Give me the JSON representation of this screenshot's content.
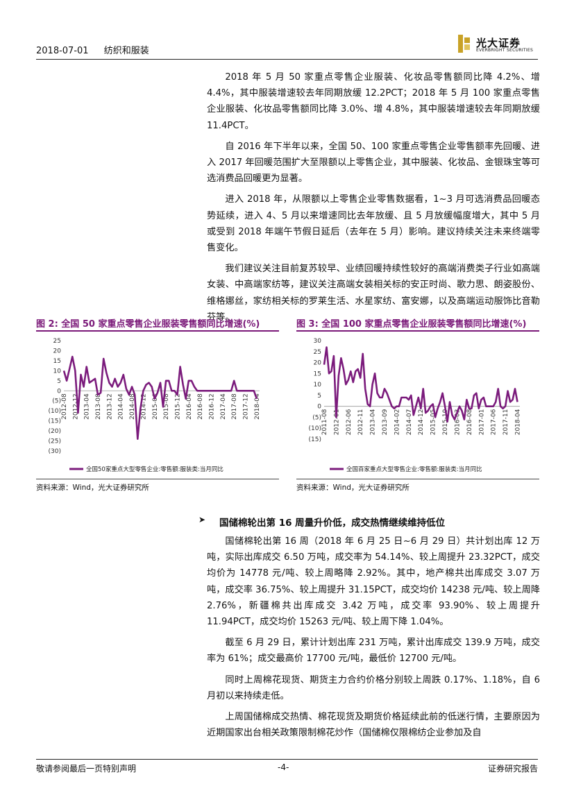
{
  "header": {
    "date": "2018-07-01",
    "sector": "纺织和服装",
    "logo_cn": "光大证券",
    "logo_en": "EVERBRIGHT SECURITIES"
  },
  "paragraphs_top": [
    "2018 年 5 月 50 家重点零售企业服装、化妆品零售额同比降 4.2%、增 4.4%，其中服装增速较去年同期放缓 12.2PCT；2018 年 5 月 100 家重点零售企业服装、化妆品零售额同比降 3.0%、增 4.8%，其中服装增速较去年同期放缓 11.4PCT。",
    "自 2016 年下半年以来，全国 50、100 家重点零售企业零售额率先回暖、进入 2017 年回暖范围扩大至限额以上零售企业，其中服装、化妆品、金银珠宝等可选消费品回暖更为显著。",
    "进入 2018 年，从限额以上零售企业零售数据看，1~3 月可选消费品回暖态势延续，进入 4、5 月以来增速同比去年放缓、且 5 月放缓幅度增大，其中 5 月或受到 2018 年端午节假日延后（去年在 5 月）影响。建议持续关注未来终端零售变化。",
    "我们建议关注目前复苏较早、业绩回暖持续性较好的高端消费类子行业如高端女装、中高端家纺等，建议关注高端女装相关标的安正时尚、歌力思、朗姿股份、维格娜丝，家纺相关标的罗莱生活、水星家纺、富安娜，以及高端运动服饰比音勒芬等。"
  ],
  "figure2": {
    "title": "图 2: 全国 50 家重点零售企业服装零售额同比增速(%)",
    "source": "资料来源：Wind，光大证券研究所"
  },
  "figure3": {
    "title": "图 3: 全国 100 家重点零售企业服装零售额同比增速(%)",
    "source": "资料来源：Wind，光大证券研究所"
  },
  "chart_data": [
    {
      "type": "line",
      "title": "图 2: 全国 50 家重点零售企业服装零售额同比增速(%)",
      "yticks": [
        "25",
        "20",
        "15",
        "10",
        "5",
        "0",
        "(5)",
        "(10)",
        "(15)",
        "(20)",
        "(25)",
        "(30)"
      ],
      "ylim": [
        -30,
        25
      ],
      "xticks": [
        "2012-08",
        "2012-12",
        "2013-04",
        "2013-08",
        "2013-12",
        "2014-04",
        "2014-08",
        "2014-12",
        "2015-04",
        "2015-08",
        "2015-12",
        "2016-04",
        "2016-08",
        "2016-12",
        "2017-04",
        "2017-08",
        "2017-12",
        "2018-04"
      ],
      "xtick_index": [
        0,
        4,
        8,
        12,
        16,
        20,
        24,
        28,
        32,
        36,
        40,
        44,
        48,
        52,
        56,
        60,
        64,
        68
      ],
      "x_range": [
        0,
        69
      ],
      "series": [
        {
          "name": "全国50家重点大型零售企业:零售额:服装类:当月同比",
          "color": "#7b1b7c",
          "values": [
            10,
            5,
            11,
            17,
            10,
            -11,
            8,
            2,
            12,
            4,
            5,
            6,
            -2,
            -1,
            16,
            9,
            4,
            2,
            6,
            2,
            4,
            8,
            1,
            -2,
            2,
            -2,
            -24,
            -9,
            0,
            3,
            4,
            2,
            -4,
            -1,
            4,
            -8,
            5,
            5,
            0,
            0,
            -2,
            12,
            3,
            -4,
            5,
            5,
            2,
            0,
            0,
            0,
            0,
            0,
            0,
            0,
            0,
            0,
            0,
            0,
            0,
            0,
            5,
            0,
            0,
            0,
            0,
            0,
            0,
            0,
            -4
          ]
        }
      ]
    },
    {
      "type": "line",
      "title": "图 3: 全国 100 家重点零售企业服装零售额同比增速(%)",
      "yticks": [
        "30",
        "25",
        "20",
        "15",
        "10",
        "5",
        "0",
        "(5)",
        "(10)",
        "(15)"
      ],
      "ylim": [
        -15,
        30
      ],
      "xticks": [
        "2011-08",
        "2012-01",
        "2012-06",
        "2012-11",
        "2013-04",
        "2013-09",
        "2014-02",
        "2014-07",
        "2014-12",
        "2015-05",
        "2015-10",
        "2016-03",
        "2016-08",
        "2017-01",
        "2017-06",
        "2017-11",
        "2018-04"
      ],
      "xtick_index": [
        0,
        5,
        10,
        15,
        20,
        25,
        30,
        35,
        40,
        45,
        50,
        55,
        60,
        65,
        70,
        75,
        80
      ],
      "x_range": [
        0,
        81
      ],
      "series": [
        {
          "name": "全国百家重点大型零售企业:零售额:服装类:当月同比",
          "color": "#7b1b7c",
          "values": [
            19,
            27,
            15,
            16,
            23,
            -5,
            14,
            22,
            17,
            10,
            12,
            16,
            11,
            16,
            17,
            13,
            24,
            8,
            1,
            0,
            10,
            15,
            6,
            4,
            4,
            8,
            6,
            3,
            0,
            -1,
            0,
            0,
            4,
            4,
            4,
            3,
            5,
            -4,
            0,
            4,
            -1,
            8,
            -3,
            -2,
            0,
            1,
            -5,
            -1,
            2,
            6,
            0,
            -7,
            2,
            -4,
            -6,
            -3,
            0,
            -2,
            -6,
            3,
            -1,
            -1,
            5,
            6,
            -1,
            3,
            4,
            0,
            0,
            0,
            0,
            2,
            8,
            0,
            -1,
            0,
            7,
            2,
            3,
            8,
            2
          ]
        }
      ]
    }
  ],
  "section": {
    "title": "国储棉轮出第 16 周量升价低，成交热情继续维持低位",
    "paragraphs": [
      "国储棉轮出第 16 周（2018 年 6 月 25 日~6 月 29 日）共计划出库 12 万吨，实际出库成交 6.50 万吨，成交率为 54.14%、较上周提升 23.32PCT，成交均价为 14778 元/吨、较上周略降 2.92%。其中，地产棉共出库成交 3.07 万吨，成交率 36.75%、较上周提升 31.15PCT，成交均价 14238 元/吨、较上周降 2.76%，新疆棉共出库成交 3.42 万吨，成交率 93.90%、较上周提升 11.94PCT，成交均价 15263 元/吨、较上周下降 1.04%。",
      "截至 6 月 29 日，累计计划出库 231 万吨，累计出库成交 139.9 万吨，成交率为 61%；成交最高价 17700 元/吨，最低价 12700 元/吨。",
      "同时上周棉花现货、期货主力合约价格分别较上周跌 0.17%、1.18%，自 6 月初以来持续走低。",
      "上周国储棉成交热情、棉花现货及期货价格延续此前的低迷行情，主要原因为近期国家出台相关政策限制棉花炒作（国储棉仅限棉纺企业参加及自"
    ]
  },
  "footer": {
    "left": "敬请参阅最后一页特别声明",
    "center": "-4-",
    "right": "证券研究报告"
  },
  "colors": {
    "accent": "#7a1878",
    "logo_gold": "#c9a227"
  }
}
